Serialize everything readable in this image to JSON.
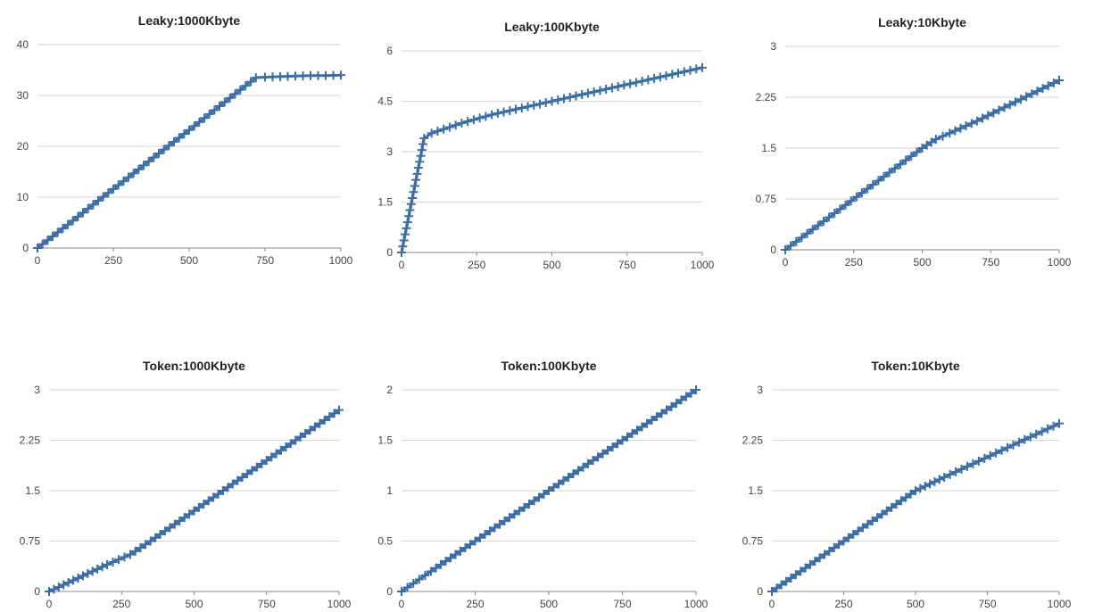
{
  "colors": {
    "series": "#3b6ea5",
    "grid": "#d6d6d6",
    "axis": "#888888"
  },
  "chart_data": [
    {
      "type": "scatter",
      "title": "Leaky:1000Kbyte",
      "xlim": [
        0,
        1000
      ],
      "ylim": [
        0,
        40
      ],
      "x_ticks": [
        "0",
        "250",
        "500",
        "750",
        "1000"
      ],
      "y_ticks": [
        "0",
        "10",
        "20",
        "30",
        "40"
      ],
      "grid": true,
      "series": [
        {
          "points": [
            [
              0,
              0
            ],
            [
              100,
              4.6
            ],
            [
              200,
              9.3
            ],
            [
              300,
              13.9
            ],
            [
              400,
              18.6
            ],
            [
              500,
              23.2
            ],
            [
              600,
              27.9
            ],
            [
              720,
              33.5
            ],
            [
              750,
              33.6
            ],
            [
              800,
              33.7
            ],
            [
              850,
              33.8
            ],
            [
              900,
              33.9
            ],
            [
              950,
              33.9
            ],
            [
              1000,
              34.0
            ]
          ]
        }
      ]
    },
    {
      "type": "scatter",
      "title": "Leaky:100Kbyte",
      "xlim": [
        0,
        1000
      ],
      "ylim": [
        0,
        6
      ],
      "x_ticks": [
        "0",
        "250",
        "500",
        "750",
        "1000"
      ],
      "y_ticks": [
        "0",
        "1.5",
        "3",
        "4.5",
        "6"
      ],
      "grid": true,
      "series": [
        {
          "points": [
            [
              0,
              0
            ],
            [
              20,
              0.9
            ],
            [
              40,
              1.8
            ],
            [
              60,
              2.7
            ],
            [
              75,
              3.4
            ],
            [
              100,
              3.55
            ],
            [
              200,
              3.85
            ],
            [
              300,
              4.1
            ],
            [
              400,
              4.3
            ],
            [
              500,
              4.5
            ],
            [
              600,
              4.7
            ],
            [
              700,
              4.9
            ],
            [
              800,
              5.1
            ],
            [
              900,
              5.3
            ],
            [
              1000,
              5.5
            ]
          ]
        }
      ]
    },
    {
      "type": "scatter",
      "title": "Leaky:10Kbyte",
      "xlim": [
        0,
        1000
      ],
      "ylim": [
        0,
        3
      ],
      "x_ticks": [
        "0",
        "250",
        "500",
        "750",
        "1000"
      ],
      "y_ticks": [
        "0",
        "0.75",
        "1.5",
        "2.25",
        "3"
      ],
      "grid": true,
      "series": [
        {
          "points": [
            [
              0,
              0
            ],
            [
              100,
              0.3
            ],
            [
              200,
              0.6
            ],
            [
              300,
              0.9
            ],
            [
              400,
              1.2
            ],
            [
              500,
              1.5
            ],
            [
              550,
              1.63
            ],
            [
              600,
              1.72
            ],
            [
              700,
              1.9
            ],
            [
              800,
              2.1
            ],
            [
              900,
              2.3
            ],
            [
              1000,
              2.5
            ]
          ]
        }
      ]
    },
    {
      "type": "scatter",
      "title": "Token:1000Kbyte",
      "xlim": [
        0,
        1000
      ],
      "ylim": [
        0,
        3
      ],
      "x_ticks": [
        "0",
        "250",
        "500",
        "750",
        "1000"
      ],
      "y_ticks": [
        "0",
        "0.75",
        "1.5",
        "2.25",
        "3"
      ],
      "grid": true,
      "series": [
        {
          "points": [
            [
              0,
              0
            ],
            [
              50,
              0.1
            ],
            [
              100,
              0.2
            ],
            [
              150,
              0.3
            ],
            [
              200,
              0.4
            ],
            [
              280,
              0.55
            ],
            [
              350,
              0.75
            ],
            [
              400,
              0.9
            ],
            [
              500,
              1.2
            ],
            [
              600,
              1.5
            ],
            [
              700,
              1.8
            ],
            [
              800,
              2.1
            ],
            [
              900,
              2.4
            ],
            [
              1000,
              2.7
            ]
          ]
        }
      ]
    },
    {
      "type": "scatter",
      "title": "Token:100Kbyte",
      "xlim": [
        0,
        1000
      ],
      "ylim": [
        0,
        2
      ],
      "x_ticks": [
        "0",
        "250",
        "500",
        "750",
        "1000"
      ],
      "y_ticks": [
        "0",
        "0.5",
        "1",
        "1.5",
        "2"
      ],
      "grid": true,
      "series": [
        {
          "points": [
            [
              0,
              0
            ],
            [
              40,
              0.08
            ],
            [
              80,
              0.16
            ],
            [
              100,
              0.2
            ],
            [
              200,
              0.4
            ],
            [
              300,
              0.6
            ],
            [
              400,
              0.8
            ],
            [
              500,
              1.0
            ],
            [
              600,
              1.2
            ],
            [
              700,
              1.4
            ],
            [
              800,
              1.6
            ],
            [
              900,
              1.8
            ],
            [
              1000,
              2.0
            ]
          ]
        }
      ]
    },
    {
      "type": "scatter",
      "title": "Token:10Kbyte",
      "xlim": [
        0,
        1000
      ],
      "ylim": [
        0,
        3
      ],
      "x_ticks": [
        "0",
        "250",
        "500",
        "750",
        "1000"
      ],
      "y_ticks": [
        "0",
        "0.75",
        "1.5",
        "2.25",
        "3"
      ],
      "grid": true,
      "series": [
        {
          "points": [
            [
              0,
              0
            ],
            [
              100,
              0.3
            ],
            [
              200,
              0.6
            ],
            [
              300,
              0.9
            ],
            [
              400,
              1.2
            ],
            [
              500,
              1.5
            ],
            [
              550,
              1.6
            ],
            [
              600,
              1.7
            ],
            [
              700,
              1.9
            ],
            [
              800,
              2.1
            ],
            [
              900,
              2.3
            ],
            [
              1000,
              2.5
            ]
          ]
        }
      ]
    }
  ]
}
